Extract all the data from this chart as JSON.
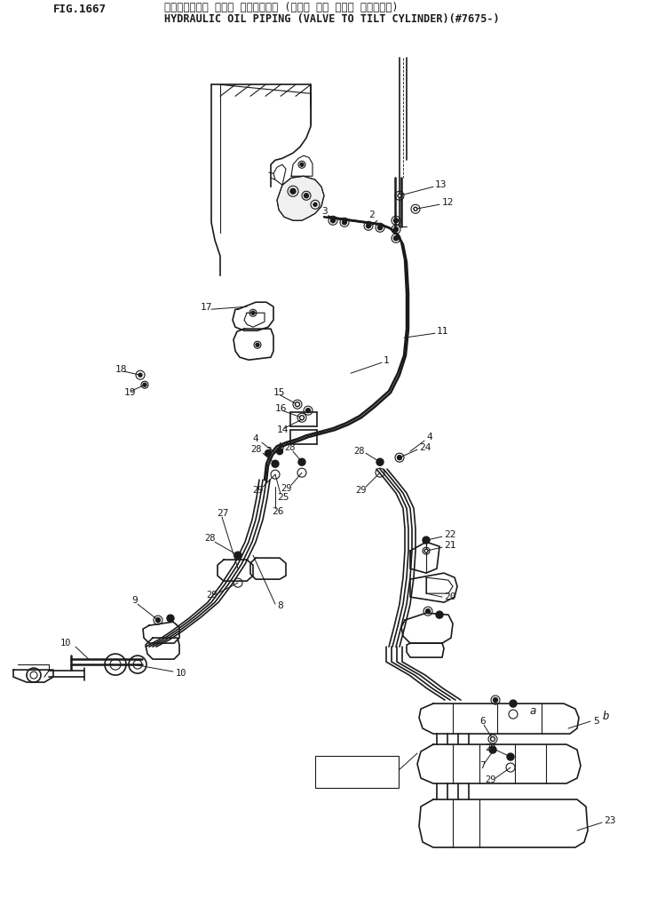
{
  "title_japanese": "ハイト・ロック オイル パイピング・ (バルブ から チルト シリンダ・)",
  "title_english": "HYDRAULIC OIL PIPING (VALVE TO TILT CYLINDER)(#7675-)",
  "fig_number": "FIG.1667",
  "bg_color": "#ffffff",
  "line_color": "#1a1a1a",
  "font_size_title": 8.5,
  "font_size_label": 8
}
